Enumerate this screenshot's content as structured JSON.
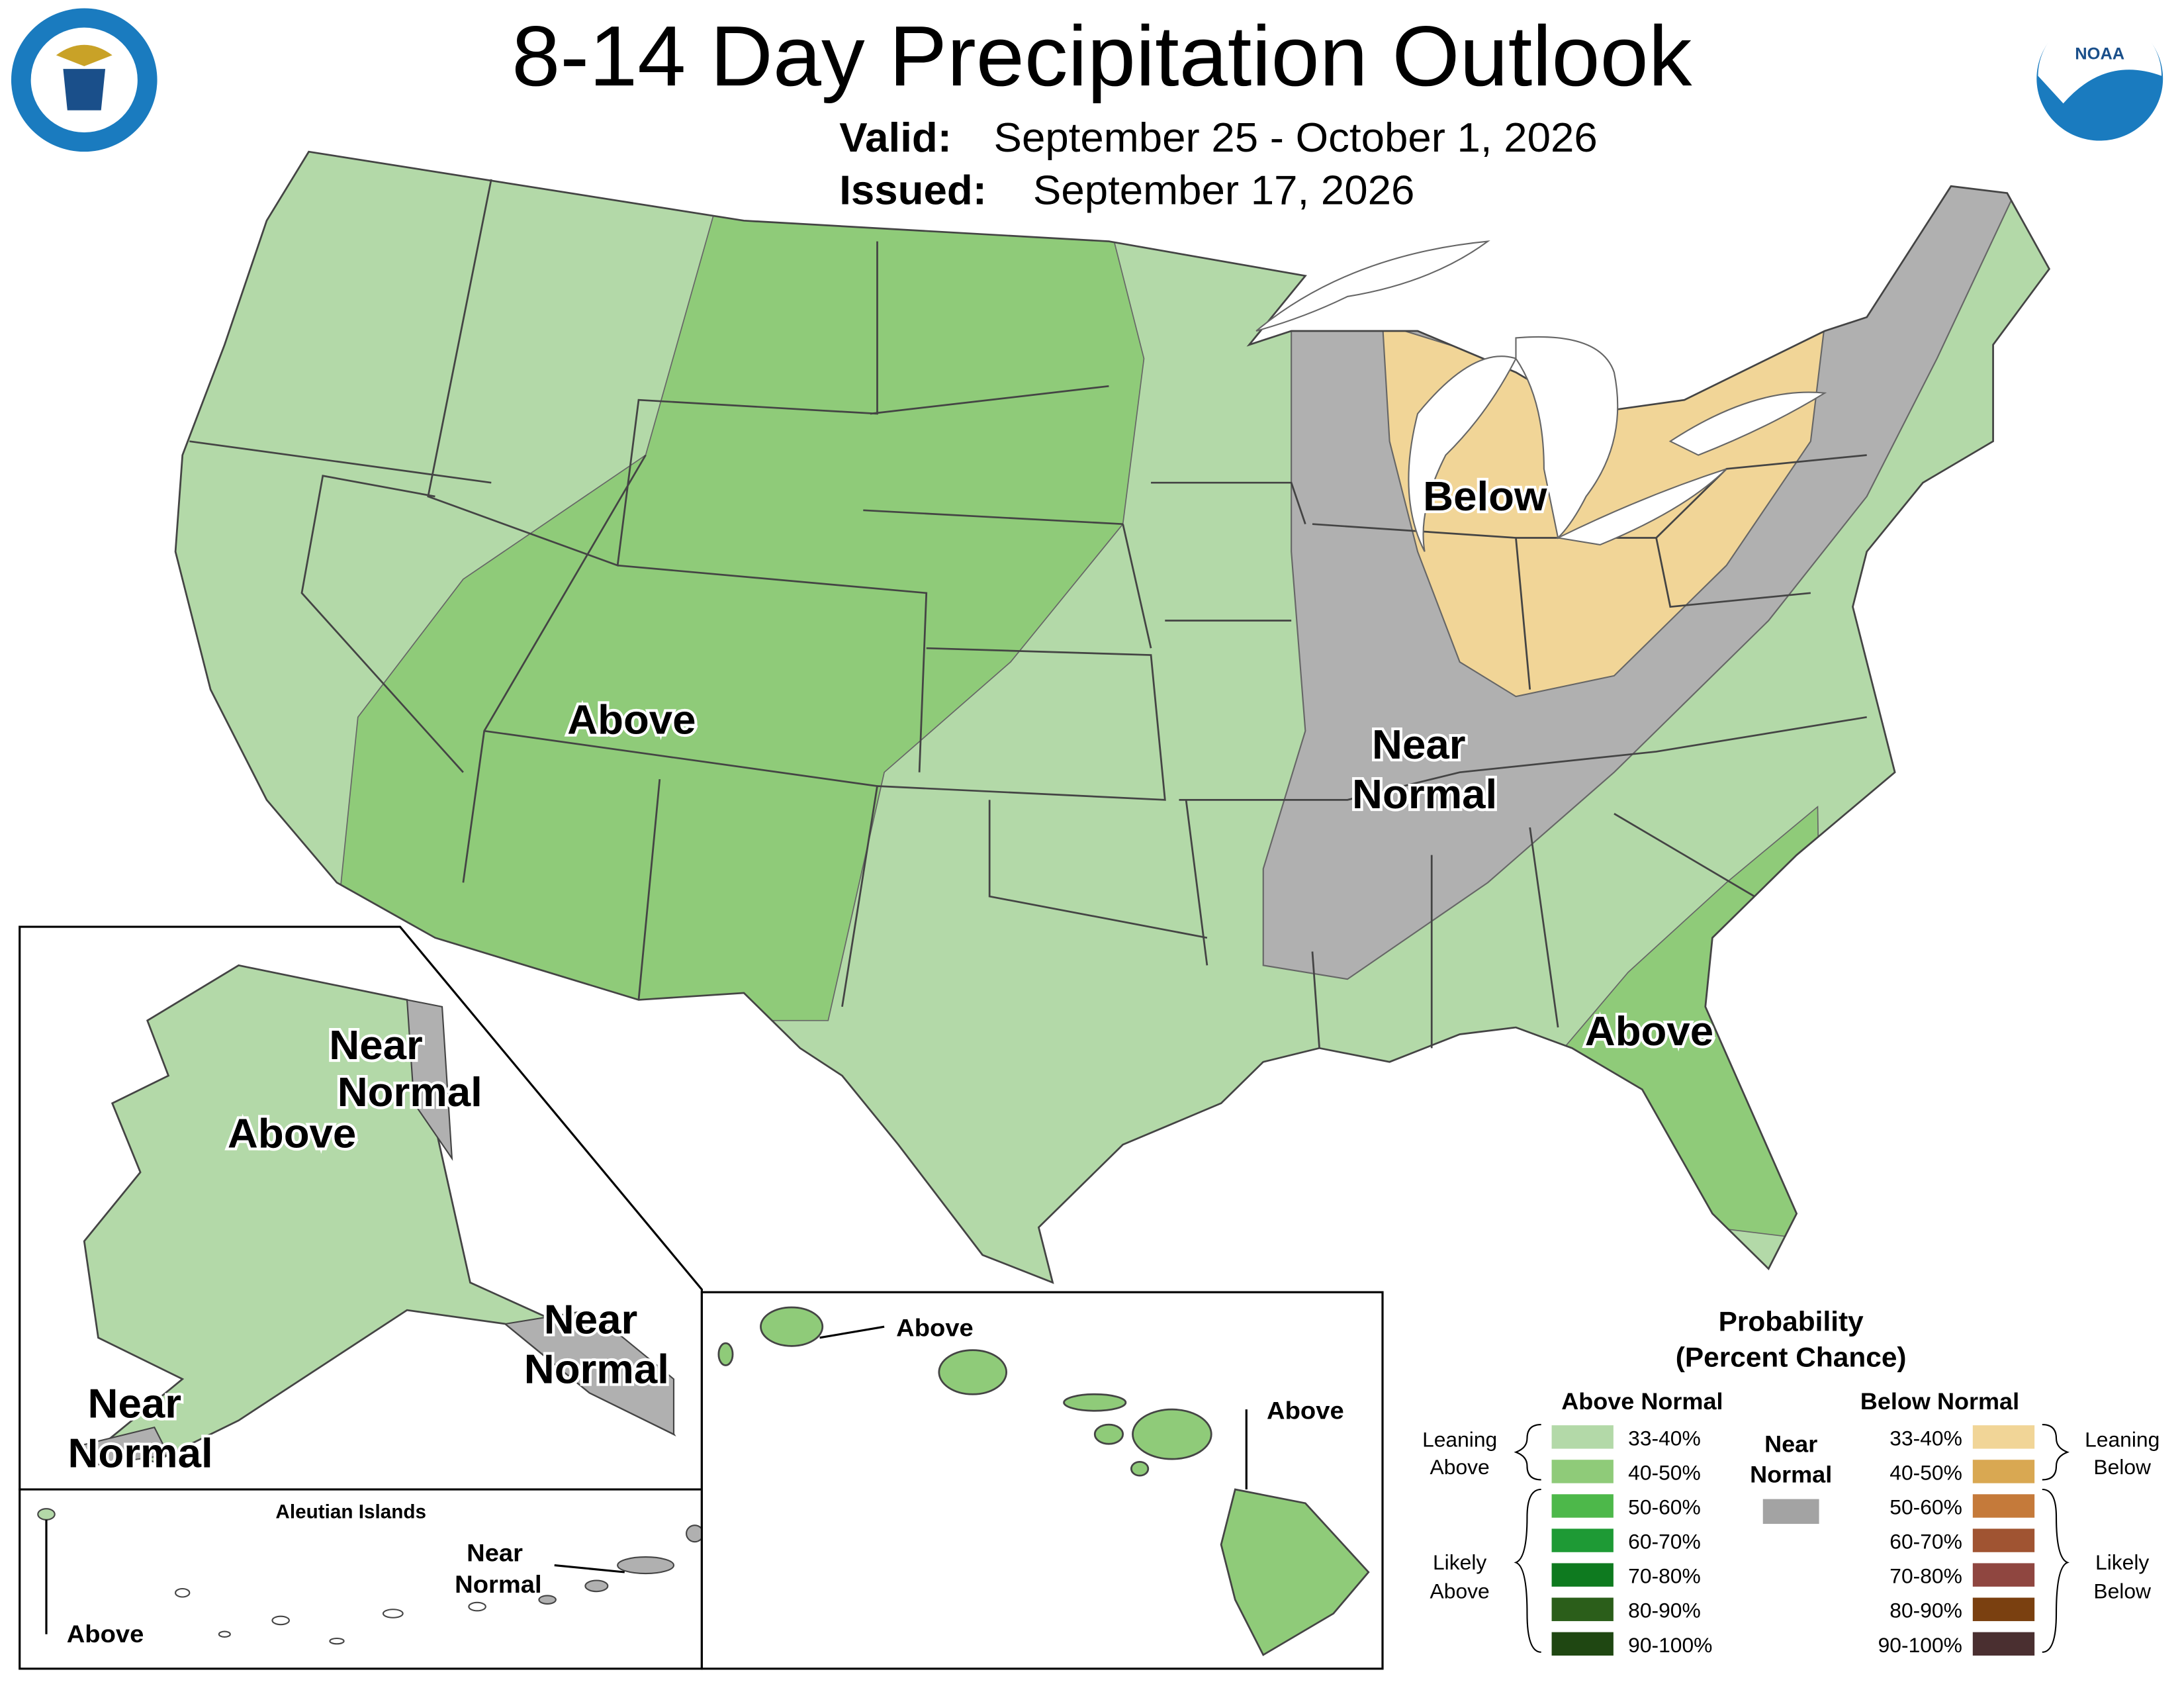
{
  "header": {
    "title": "8-14 Day Precipitation Outlook",
    "valid_label": "Valid:",
    "valid": "September 25 - October 1, 2026",
    "issued_label": "Issued:",
    "issued": "September 17, 2026"
  },
  "map_labels": {
    "conus_west": "Above",
    "great_lakes": "Below",
    "central": [
      "Near",
      "Normal"
    ],
    "southeast": "Above",
    "alaska_southeast": [
      "Near",
      "Normal"
    ],
    "alaska_main": "Above",
    "alaska_panhandle": [
      "Near",
      "Normal"
    ],
    "alaska_southwest": [
      "Near",
      "Normal"
    ],
    "hawaii_kauai": "Above",
    "hawaii_big_island": "Above",
    "aleutian_title": "Aleutian Islands",
    "aleutian_east": [
      "Near",
      "Normal"
    ],
    "aleutian_west": "Above"
  },
  "legend": {
    "title": [
      "Probability",
      "(Percent Chance)"
    ],
    "above_header": "Above Normal",
    "below_header": "Below Normal",
    "near_normal": [
      "Near",
      "Normal"
    ],
    "near_normal_color": "#a3a3a3",
    "leaning_above": [
      "Leaning",
      "Above"
    ],
    "likely_above": [
      "Likely",
      "Above"
    ],
    "leaning_below": [
      "Leaning",
      "Below"
    ],
    "likely_below": [
      "Likely",
      "Below"
    ],
    "above_ranges": [
      {
        "label": "33-40%",
        "color": "#b3d9a8"
      },
      {
        "label": "40-50%",
        "color": "#8fcb79"
      },
      {
        "label": "50-60%",
        "color": "#4db84a"
      },
      {
        "label": "60-70%",
        "color": "#1e9a35"
      },
      {
        "label": "70-80%",
        "color": "#0e7a1f"
      },
      {
        "label": "80-90%",
        "color": "#2b5e1a"
      },
      {
        "label": "90-100%",
        "color": "#1f4712"
      }
    ],
    "below_ranges": [
      {
        "label": "33-40%",
        "color": "#f1d597"
      },
      {
        "label": "40-50%",
        "color": "#d9a852"
      },
      {
        "label": "50-60%",
        "color": "#c57a3a"
      },
      {
        "label": "60-70%",
        "color": "#a05432"
      },
      {
        "label": "70-80%",
        "color": "#8f4640"
      },
      {
        "label": "80-90%",
        "color": "#7a4010"
      },
      {
        "label": "90-100%",
        "color": "#4a2f30"
      }
    ]
  }
}
